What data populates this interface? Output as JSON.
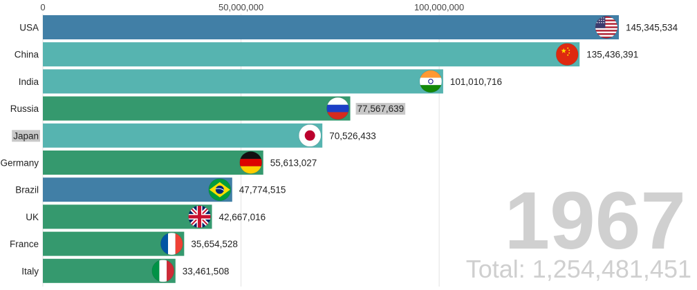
{
  "chart_data": {
    "type": "bar",
    "orientation": "horizontal",
    "year": "1967",
    "total_label": "Total: 1,254,481,451",
    "ticks": [
      {
        "value": 0,
        "label": "0"
      },
      {
        "value": 50000000,
        "label": "50,000,000"
      },
      {
        "value": 100000000,
        "label": "100,000,000"
      }
    ],
    "xlim": [
      0,
      145345534
    ],
    "categories": [
      "USA",
      "China",
      "India",
      "Russia",
      "Japan",
      "Germany",
      "Brazil",
      "UK",
      "France",
      "Italy"
    ],
    "values": [
      145345534,
      135436391,
      101010716,
      77567639,
      70526433,
      55613027,
      47774515,
      42667016,
      35654528,
      33461508
    ],
    "value_labels": [
      "145,345,534",
      "135,436,391",
      "101,010,716",
      "77,567,639",
      "70,526,433",
      "55,613,027",
      "47,774,515",
      "42,667,016",
      "35,654,528",
      "33,461,508"
    ],
    "flags": [
      "usa-flag-icon",
      "china-flag-icon",
      "india-flag-icon",
      "russia-flag-icon",
      "japan-flag-icon",
      "germany-flag-icon",
      "brazil-flag-icon",
      "uk-flag-icon",
      "france-flag-icon",
      "italy-flag-icon"
    ],
    "bar_colors": [
      "#417fa6",
      "#56b4b0",
      "#56b4b0",
      "#35996e",
      "#56b4b0",
      "#35996e",
      "#417fa6",
      "#35996e",
      "#35996e",
      "#35996e"
    ],
    "highlighted_value_index": 3,
    "highlighted_category_index": 4,
    "highlight_color": "#c8c8c8"
  }
}
